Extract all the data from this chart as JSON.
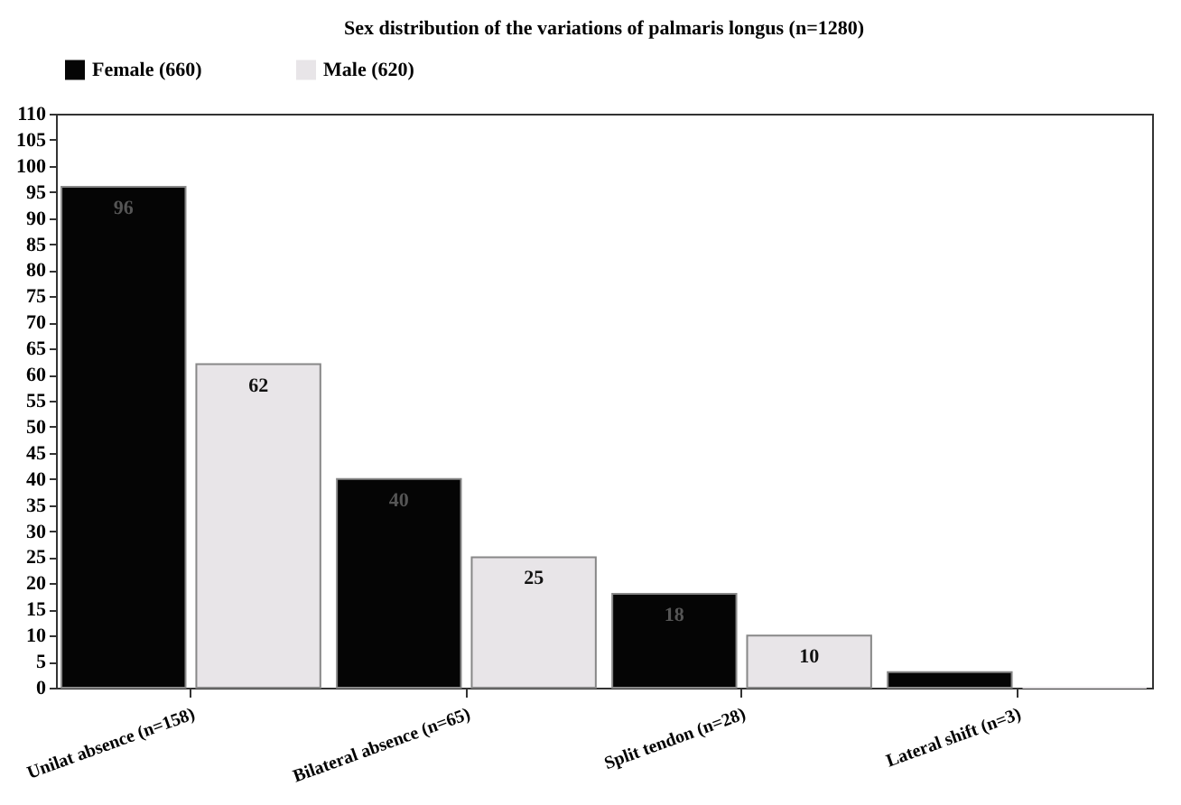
{
  "chart_data": {
    "type": "bar",
    "title": "Sex distribution of the variations of palmaris longus (n=1280)",
    "categories": [
      "Unilat absence (n=158)",
      "Bilateral absence (n=65)",
      "Split tendon (n=28)",
      "Lateral shift (n=3)"
    ],
    "series": [
      {
        "name": "Female (660)",
        "color": "#050505",
        "values": [
          96,
          40,
          18,
          3
        ],
        "value_labels": [
          "96",
          "40",
          "18",
          null
        ]
      },
      {
        "name": "Male (620)",
        "color": "#e8e5e8",
        "values": [
          62,
          25,
          10,
          0
        ],
        "value_labels": [
          "62",
          "25",
          "10",
          null
        ]
      }
    ],
    "ylim": [
      0,
      110
    ],
    "yticks": [
      0,
      5,
      10,
      15,
      20,
      25,
      30,
      35,
      40,
      45,
      50,
      55,
      60,
      65,
      70,
      75,
      80,
      85,
      90,
      95,
      100,
      105,
      110
    ],
    "grid": false,
    "legend": "top left"
  }
}
